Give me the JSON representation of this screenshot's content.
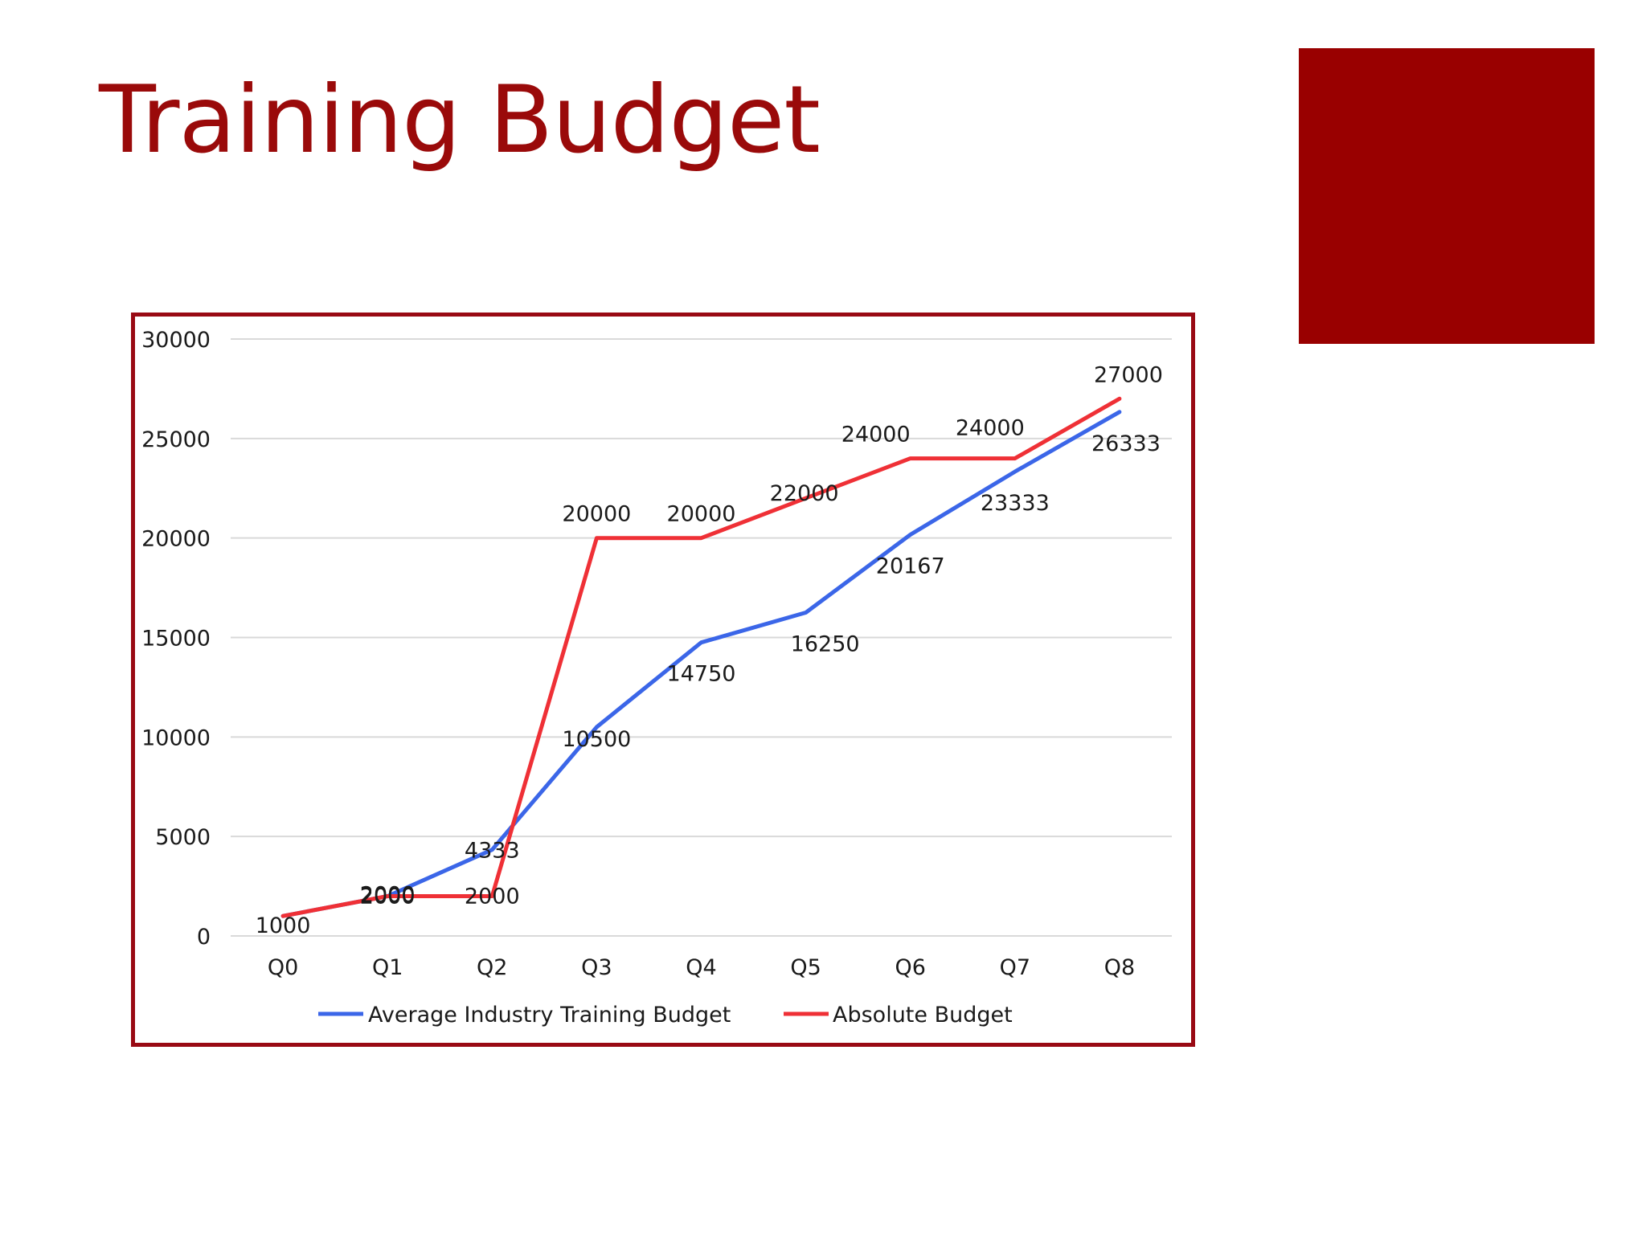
{
  "slide": {
    "title": "Training Budget",
    "accent_color": "#990000"
  },
  "chart_data": {
    "type": "line",
    "categories": [
      "Q0",
      "Q1",
      "Q2",
      "Q3",
      "Q4",
      "Q5",
      "Q6",
      "Q7",
      "Q8"
    ],
    "series": [
      {
        "name": "Average Industry Training Budget",
        "color": "#3b66e8",
        "values": [
          1000,
          2000,
          4333,
          10500,
          14750,
          16250,
          20167,
          23333,
          26333
        ],
        "labels": [
          "1000",
          "2000",
          "4333",
          "10500",
          "14750",
          "16250",
          "20167",
          "23333",
          "26333"
        ]
      },
      {
        "name": "Absolute Budget",
        "color": "#ef3036",
        "values": [
          1000,
          2000,
          2000,
          20000,
          20000,
          22000,
          24000,
          24000,
          27000
        ],
        "labels": [
          "1000",
          "2000",
          "2000",
          "20000",
          "20000",
          "22000",
          "24000",
          "24000",
          "27000"
        ]
      }
    ],
    "title": "",
    "xlabel": "",
    "ylabel": "",
    "ylim": [
      0,
      30000
    ],
    "yticks": [
      0,
      5000,
      10000,
      15000,
      20000,
      25000,
      30000
    ],
    "grid": true,
    "legend": "bottom",
    "frame_color": "#990a14"
  }
}
